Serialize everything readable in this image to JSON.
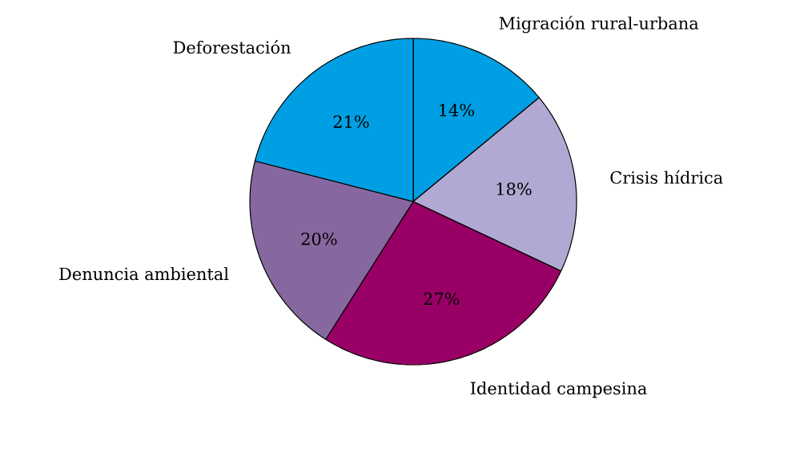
{
  "chart_data": {
    "type": "pie",
    "categories": [
      "Migración rural-urbana",
      "Crisis hídrica",
      "Identidad campesina",
      "Denuncia ambiental",
      "Deforestación"
    ],
    "values": [
      14,
      18,
      27,
      20,
      21
    ],
    "colors": [
      "#009fe3",
      "#b1a9d3",
      "#990066",
      "#8767a0",
      "#009fe3"
    ],
    "value_labels": [
      "14%",
      "18%",
      "27%",
      "20%",
      "21%"
    ]
  }
}
